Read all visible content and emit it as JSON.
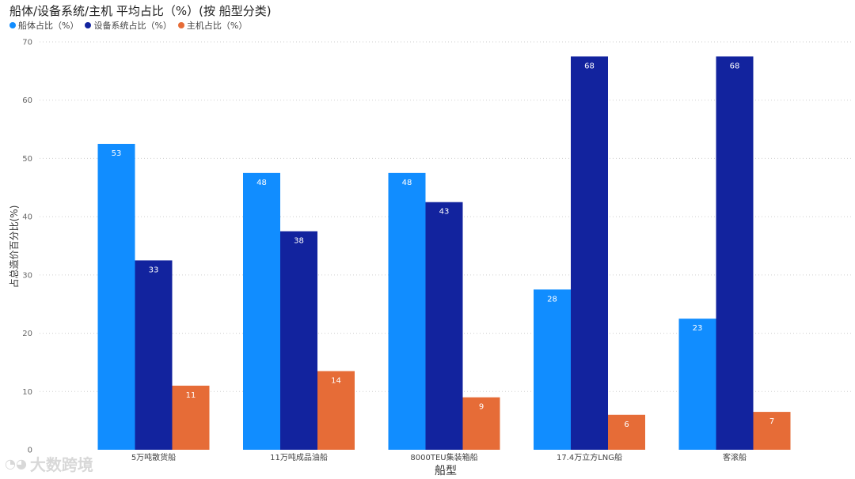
{
  "chart_data": {
    "type": "bar",
    "title": "船体/设备系统/主机 平均占比（%）(按 船型分类)",
    "xlabel": "船型",
    "ylabel": "占总造价百分比(%)",
    "ylim": [
      0,
      70
    ],
    "yticks": [
      0,
      10,
      20,
      30,
      40,
      50,
      60,
      70
    ],
    "grid": true,
    "legend_position": "top-left",
    "categories": [
      "5万吨散货船",
      "11万吨成品油船",
      "8000TEU集装箱船",
      "17.4万立方LNG船",
      "客滚船"
    ],
    "series": [
      {
        "name": "船体占比（%）",
        "color": "#118DFF",
        "values": [
          52.5,
          47.5,
          47.5,
          27.5,
          22.5
        ],
        "labels": [
          "53",
          "48",
          "48",
          "28",
          "23"
        ]
      },
      {
        "name": "设备系统占比（%）",
        "color": "#12239E",
        "values": [
          32.5,
          37.5,
          42.5,
          67.5,
          67.5
        ],
        "labels": [
          "33",
          "38",
          "43",
          "68",
          "68"
        ]
      },
      {
        "name": "主机占比（%）",
        "color": "#E66C37",
        "values": [
          11,
          13.5,
          9,
          6,
          6.5
        ],
        "labels": [
          "11",
          "14",
          "9",
          "6",
          "7"
        ]
      }
    ]
  },
  "watermark": {
    "text": "大数跨境",
    "icon": "logo-icon"
  }
}
